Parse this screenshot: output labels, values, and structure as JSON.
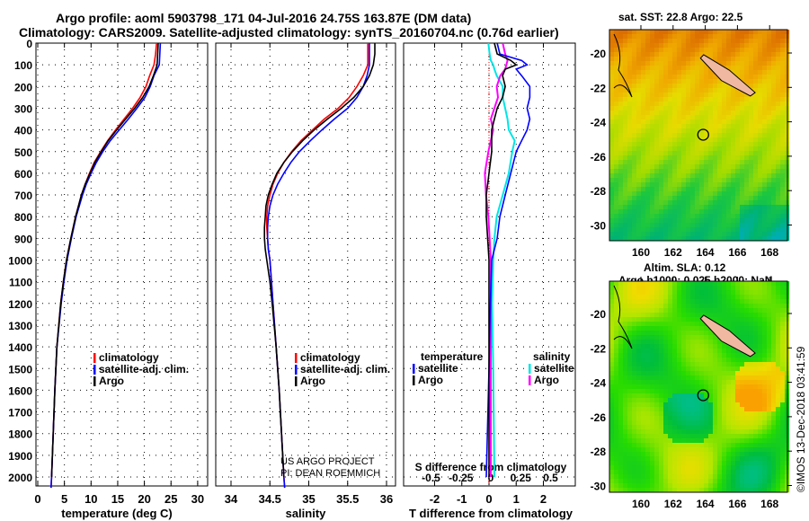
{
  "title_line1": "Argo profile: aoml 5903798_171 04-Jul-2016 24.75S 163.87E (DM data)",
  "title_line2": "Climatology: CARS2009. Satellite-adjusted climatology: synTS_20160704.nc (0.76d earlier)",
  "credit": "©IMOS 13-Dec-2018 03:41:59",
  "project_line1": "US ARGO PROJECT",
  "project_line2": "PI: DEAN ROEMMICH",
  "colors": {
    "climatology": "#ff0000",
    "satellite": "#0000ff",
    "argo": "#000000",
    "sal_satellite": "#00e5e5",
    "sal_argo": "#ff00ff"
  },
  "chart_data": [
    {
      "type": "line",
      "xlabel": "temperature (deg C)",
      "ylabel": "depth",
      "xlim": [
        -1,
        31
      ],
      "ylim": [
        2050,
        0
      ],
      "xticks": [
        "0",
        "5",
        "10",
        "15",
        "20",
        "25",
        "30"
      ],
      "yticks": [
        "0",
        "100",
        "200",
        "300",
        "400",
        "500",
        "600",
        "700",
        "800",
        "900",
        "1000",
        "1100",
        "1200",
        "1300",
        "1400",
        "1500",
        "1600",
        "1700",
        "1800",
        "1900",
        "2000"
      ],
      "legend": [
        "climatology",
        "satellite-adj. clim.",
        "Argo"
      ],
      "depth": [
        0,
        50,
        100,
        150,
        200,
        250,
        300,
        350,
        400,
        450,
        500,
        550,
        600,
        650,
        700,
        800,
        900,
        1000,
        1100,
        1200,
        1400,
        1600,
        1800,
        2000,
        2050
      ],
      "series": [
        {
          "name": "climatology",
          "values": [
            22.3,
            22.1,
            21.8,
            21.0,
            20.3,
            19.2,
            17.8,
            16.2,
            14.6,
            13.1,
            11.8,
            10.6,
            9.7,
            8.9,
            8.2,
            7.1,
            6.2,
            5.4,
            4.8,
            4.3,
            3.6,
            3.2,
            2.9,
            2.6,
            2.5
          ]
        },
        {
          "name": "satellite-adj. clim.",
          "values": [
            23.0,
            22.9,
            22.8,
            21.8,
            21.1,
            20.1,
            18.6,
            17.0,
            15.3,
            13.6,
            12.2,
            11.0,
            10.0,
            9.1,
            8.4,
            7.2,
            6.3,
            5.5,
            4.9,
            4.4,
            3.6,
            3.2,
            2.9,
            2.6,
            2.5
          ]
        },
        {
          "name": "Argo",
          "values": [
            22.6,
            22.5,
            22.4,
            21.7,
            20.9,
            19.7,
            18.2,
            16.5,
            14.8,
            13.2,
            11.9,
            10.7,
            9.8,
            8.9,
            8.2,
            7.1,
            6.2,
            5.4,
            4.8,
            4.3,
            3.6,
            3.2,
            2.9,
            2.6,
            null
          ]
        }
      ]
    },
    {
      "type": "line",
      "xlabel": "salinity",
      "ylabel": "depth",
      "xlim": [
        33.8,
        36.1
      ],
      "ylim": [
        2050,
        0
      ],
      "xticks": [
        "34",
        "34.5",
        "35",
        "35.5",
        "36"
      ],
      "legend": [
        "climatology",
        "satellite-adj. clim.",
        "Argo"
      ],
      "depth": [
        0,
        50,
        100,
        150,
        200,
        250,
        300,
        350,
        400,
        450,
        500,
        550,
        600,
        650,
        700,
        750,
        800,
        850,
        900,
        950,
        1000,
        1100,
        1200,
        1400,
        1600,
        1800,
        2000,
        2050
      ],
      "series": [
        {
          "name": "climatology",
          "values": [
            35.76,
            35.76,
            35.76,
            35.7,
            35.62,
            35.52,
            35.38,
            35.2,
            35.05,
            34.9,
            34.78,
            34.68,
            34.6,
            34.54,
            34.5,
            34.47,
            34.46,
            34.46,
            34.47,
            34.48,
            34.5,
            34.52,
            34.54,
            34.58,
            34.62,
            34.65,
            34.68,
            34.69
          ]
        },
        {
          "name": "satellite-adj. clim.",
          "values": [
            35.78,
            35.78,
            35.78,
            35.75,
            35.7,
            35.62,
            35.5,
            35.33,
            35.17,
            35.02,
            34.88,
            34.77,
            34.68,
            34.6,
            34.54,
            34.5,
            34.48,
            34.47,
            34.47,
            34.48,
            34.5,
            34.52,
            34.54,
            34.58,
            34.62,
            34.65,
            34.68,
            34.69
          ]
        },
        {
          "name": "Argo",
          "values": [
            35.85,
            35.85,
            35.83,
            35.78,
            35.7,
            35.58,
            35.42,
            35.24,
            35.07,
            34.92,
            34.79,
            34.68,
            34.59,
            34.53,
            34.48,
            34.45,
            34.44,
            34.43,
            34.43,
            34.44,
            34.46,
            34.5,
            34.53,
            34.58,
            34.62,
            34.65,
            34.68,
            null
          ]
        }
      ]
    },
    {
      "type": "line",
      "xlabel": "T difference from climatology",
      "x2label": "S difference from climatology",
      "xlim": [
        -3,
        3
      ],
      "xticks": [
        "-2",
        "-1",
        "0",
        "1",
        "2"
      ],
      "x2ticks": [
        "-0.5",
        "-0.25",
        "0",
        "0.25",
        "0.5"
      ],
      "legend_temperature_title": "temperature",
      "legend_salinity_title": "salinity",
      "legend_temperature": [
        "satellite",
        "Argo"
      ],
      "legend_salinity": [
        "satellite",
        "Argo"
      ],
      "depth": [
        0,
        50,
        80,
        100,
        120,
        150,
        200,
        250,
        300,
        350,
        400,
        450,
        500,
        600,
        700,
        800,
        900,
        1000,
        1200,
        1500,
        2000
      ],
      "series": [
        {
          "name": "T satellite",
          "values": [
            0.3,
            0.4,
            1.2,
            1.4,
            1.0,
            1.2,
            1.5,
            1.5,
            1.4,
            1.5,
            1.4,
            1.2,
            1.0,
            0.8,
            0.6,
            0.4,
            0.3,
            0.1,
            0.05,
            0.0,
            -0.1
          ]
        },
        {
          "name": "T Argo",
          "values": [
            0.2,
            0.3,
            0.8,
            1.0,
            0.6,
            0.5,
            0.6,
            0.5,
            0.3,
            0.2,
            0.1,
            0.1,
            0.1,
            0.0,
            -0.1,
            -0.1,
            -0.05,
            0.0,
            0.0,
            0.0,
            0.0
          ]
        },
        {
          "name": "S satellite",
          "values": [
            -0.02,
            -0.01,
            0.0,
            0.02,
            0.03,
            0.05,
            0.1,
            0.1,
            0.12,
            0.14,
            0.15,
            0.2,
            0.18,
            0.15,
            0.1,
            0.05,
            0.03,
            0.02,
            0.01,
            0.02,
            0.03
          ]
        },
        {
          "name": "S Argo",
          "values": [
            0.1,
            0.12,
            0.14,
            0.13,
            0.12,
            0.08,
            0.05,
            0.06,
            0.03,
            0.0,
            0.02,
            0.0,
            -0.02,
            -0.05,
            -0.04,
            -0.02,
            -0.01,
            0.0,
            0.0,
            0.0,
            0.0
          ]
        }
      ]
    },
    {
      "type": "heatmap",
      "title": "sat. SST: 22.8 Argo: 22.5",
      "xticks": [
        "160",
        "162",
        "164",
        "166",
        "168"
      ],
      "yticks": [
        "-20",
        "-22",
        "-24",
        "-26",
        "-28",
        "-30"
      ],
      "marker": {
        "lon": 163.87,
        "lat": -24.75
      }
    },
    {
      "type": "heatmap",
      "title": "Altim. SLA: 0.12",
      "subtitle": "Argo h1000: 0.025 h2000: NaN",
      "xticks": [
        "160",
        "162",
        "164",
        "166",
        "168"
      ],
      "yticks": [
        "-20",
        "-22",
        "-24",
        "-26",
        "-28",
        "-30"
      ],
      "marker": {
        "lon": 163.87,
        "lat": -24.75
      }
    }
  ]
}
